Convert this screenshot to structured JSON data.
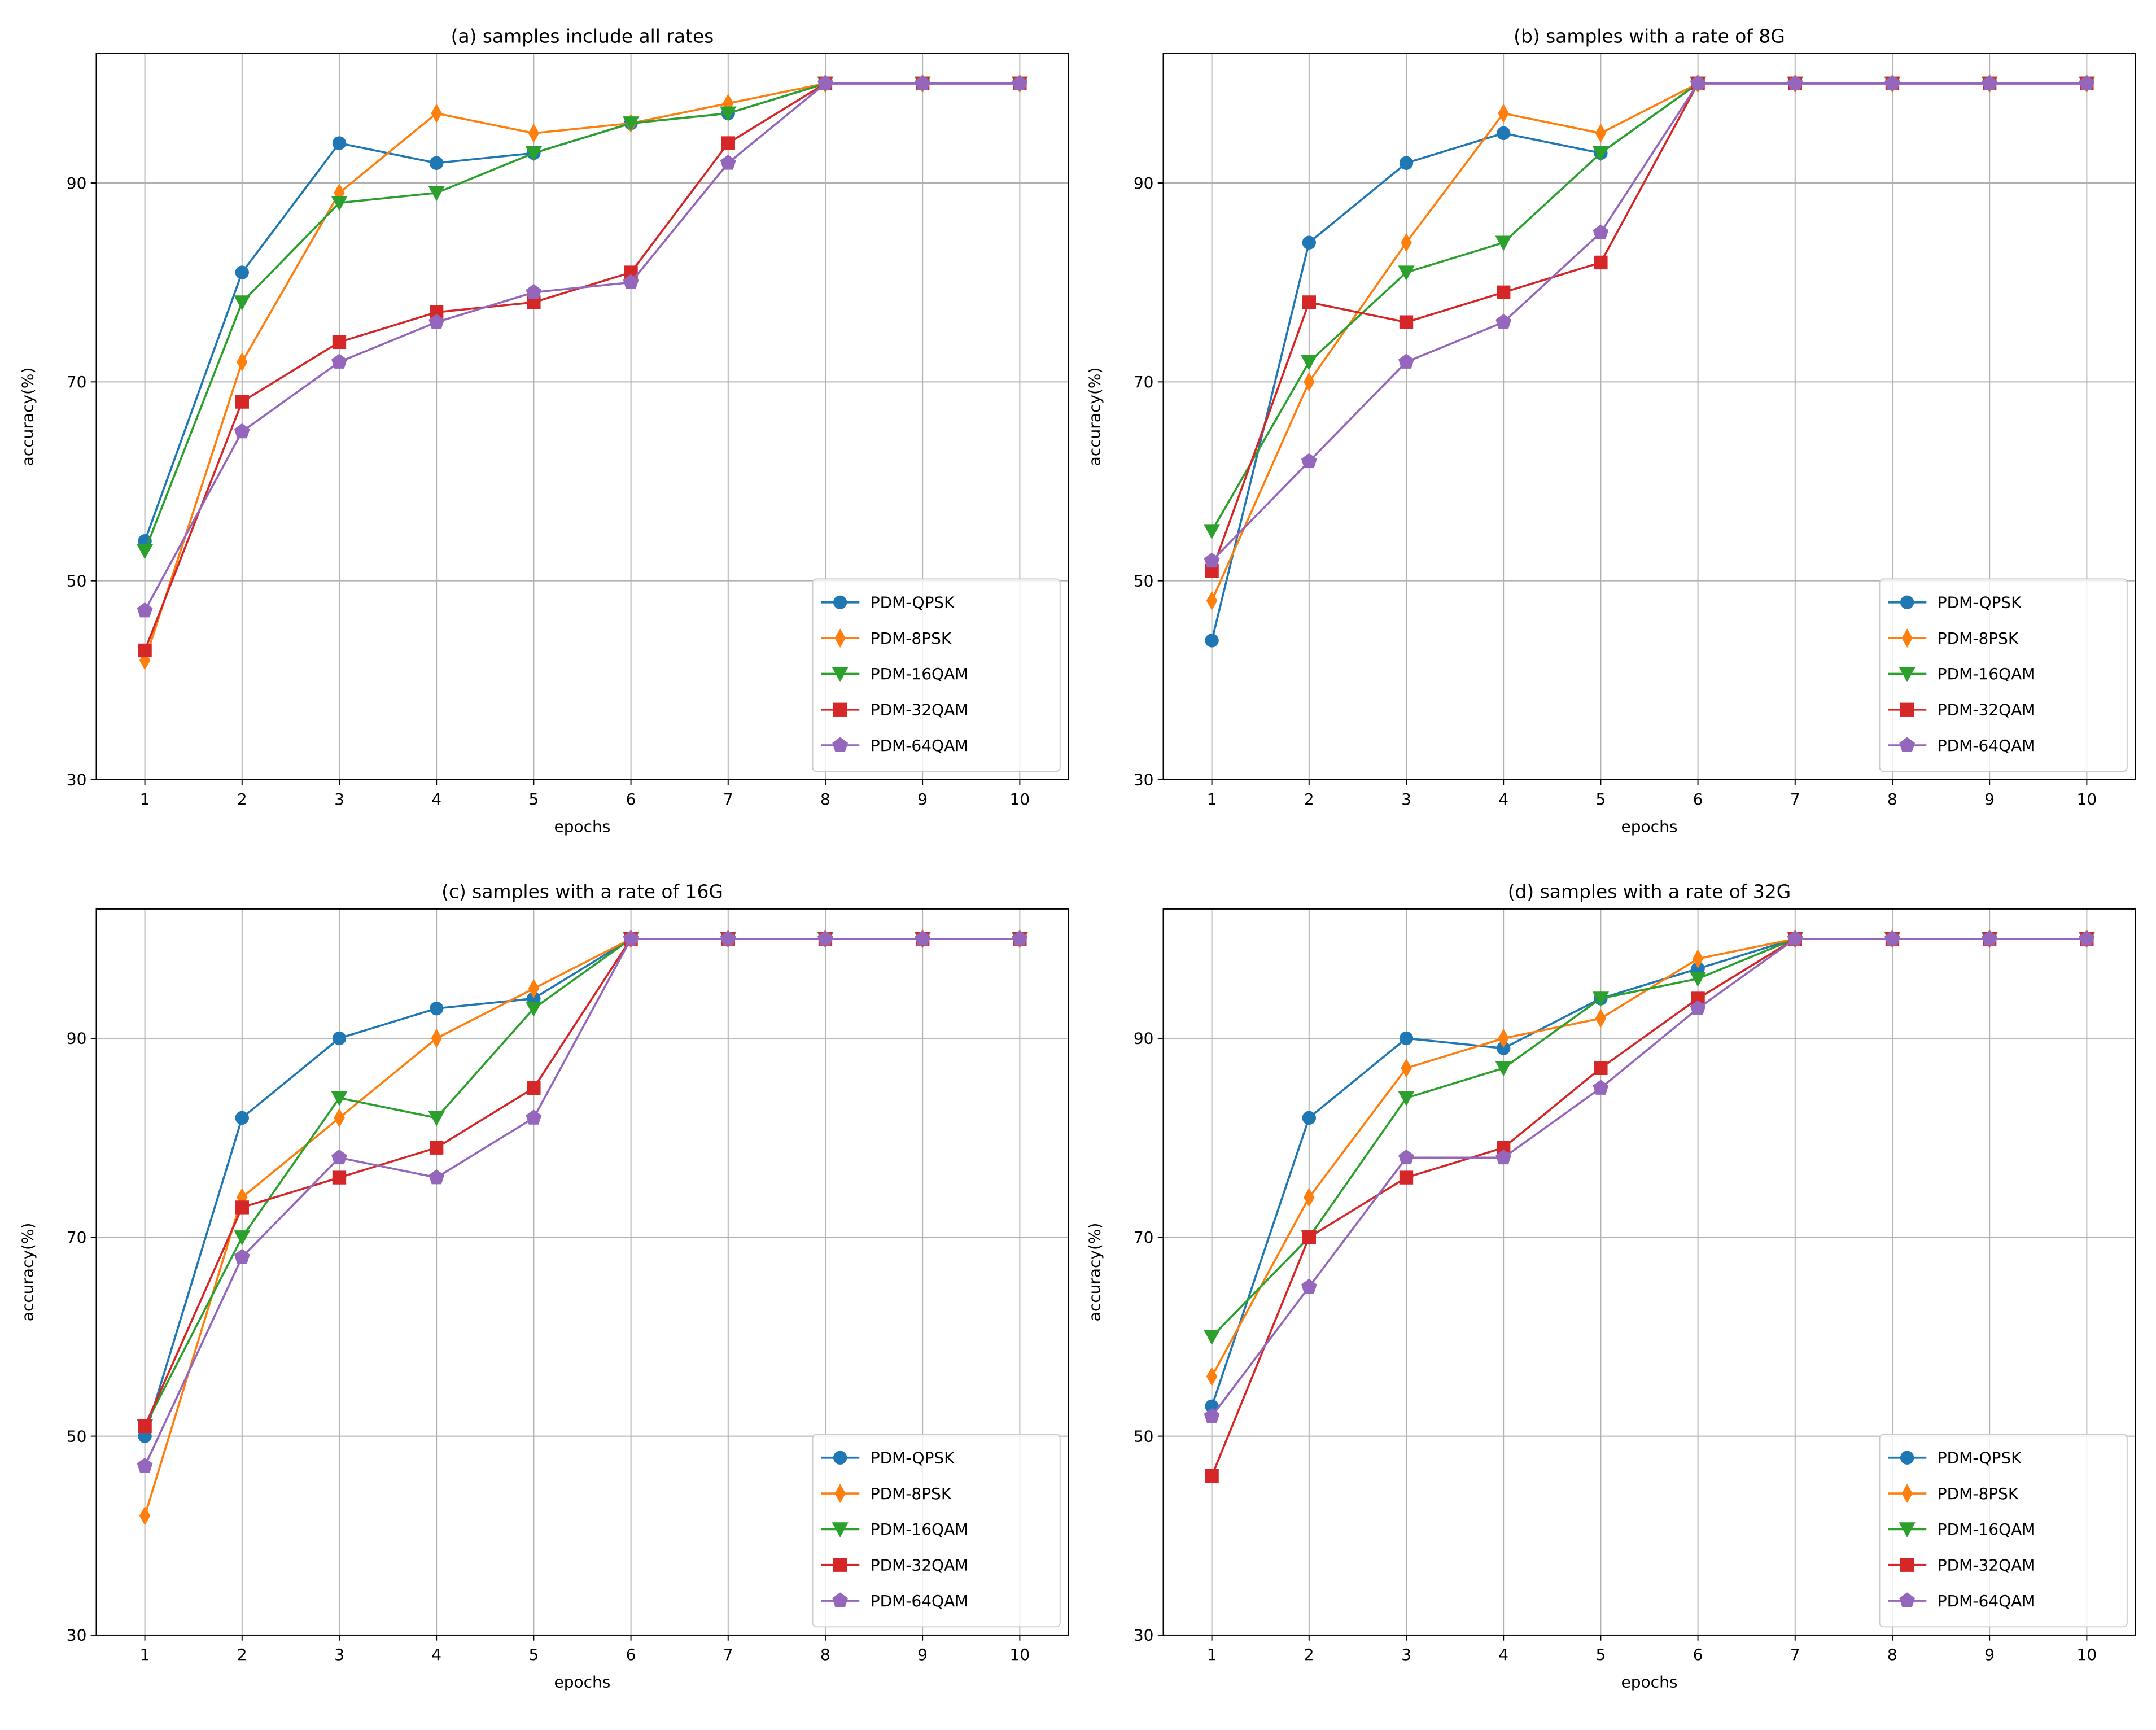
{
  "chart_data": [
    {
      "type": "line",
      "title": "(a) samples include all rates",
      "xlabel": "epochs",
      "ylabel": "accuracy(%)",
      "x": [
        1,
        2,
        3,
        4,
        5,
        6,
        7,
        8,
        9,
        10
      ],
      "xticks": [
        "1",
        "2",
        "3",
        "4",
        "5",
        "6",
        "7",
        "8",
        "9",
        "10"
      ],
      "yticks": [
        "30",
        "50",
        "70",
        "90"
      ],
      "ytick_values": [
        30,
        50,
        70,
        90
      ],
      "xlim": [
        0.5,
        10.5
      ],
      "ylim": [
        30,
        103
      ],
      "grid": true,
      "legend_position": "lower-right",
      "series": [
        {
          "name": "PDM-QPSK",
          "marker": "circle",
          "color": "#1f77b4",
          "values": [
            54,
            81,
            94,
            92,
            93,
            96,
            97,
            100,
            100,
            100
          ]
        },
        {
          "name": "PDM-8PSK",
          "marker": "diamond",
          "color": "#ff7f0e",
          "values": [
            42,
            72,
            89,
            97,
            95,
            96,
            98,
            100,
            100,
            100
          ]
        },
        {
          "name": "PDM-16QAM",
          "marker": "triangle-down",
          "color": "#2ca02c",
          "values": [
            53,
            78,
            88,
            89,
            93,
            96,
            97,
            100,
            100,
            100
          ]
        },
        {
          "name": "PDM-32QAM",
          "marker": "square",
          "color": "#d62728",
          "values": [
            43,
            68,
            74,
            77,
            78,
            81,
            94,
            100,
            100,
            100
          ]
        },
        {
          "name": "PDM-64QAM",
          "marker": "pentagon",
          "color": "#9467bd",
          "values": [
            47,
            65,
            72,
            76,
            79,
            80,
            92,
            100,
            100,
            100
          ]
        }
      ]
    },
    {
      "type": "line",
      "title": "(b) samples with a rate of 8G",
      "xlabel": "epochs",
      "ylabel": "accuracy(%)",
      "x": [
        1,
        2,
        3,
        4,
        5,
        6,
        7,
        8,
        9,
        10
      ],
      "xticks": [
        "1",
        "2",
        "3",
        "4",
        "5",
        "6",
        "7",
        "8",
        "9",
        "10"
      ],
      "yticks": [
        "30",
        "50",
        "70",
        "90"
      ],
      "ytick_values": [
        30,
        50,
        70,
        90
      ],
      "xlim": [
        0.5,
        10.5
      ],
      "ylim": [
        30,
        103
      ],
      "grid": true,
      "legend_position": "lower-right",
      "series": [
        {
          "name": "PDM-QPSK",
          "marker": "circle",
          "color": "#1f77b4",
          "values": [
            44,
            84,
            92,
            95,
            93,
            100,
            100,
            100,
            100,
            100
          ]
        },
        {
          "name": "PDM-8PSK",
          "marker": "diamond",
          "color": "#ff7f0e",
          "values": [
            48,
            70,
            84,
            97,
            95,
            100,
            100,
            100,
            100,
            100
          ]
        },
        {
          "name": "PDM-16QAM",
          "marker": "triangle-down",
          "color": "#2ca02c",
          "values": [
            55,
            72,
            81,
            84,
            93,
            100,
            100,
            100,
            100,
            100
          ]
        },
        {
          "name": "PDM-32QAM",
          "marker": "square",
          "color": "#d62728",
          "values": [
            51,
            78,
            76,
            79,
            82,
            100,
            100,
            100,
            100,
            100
          ]
        },
        {
          "name": "PDM-64QAM",
          "marker": "pentagon",
          "color": "#9467bd",
          "values": [
            52,
            62,
            72,
            76,
            85,
            100,
            100,
            100,
            100,
            100
          ]
        }
      ]
    },
    {
      "type": "line",
      "title": "(c) samples with a rate of 16G",
      "xlabel": "epochs",
      "ylabel": "accuracy(%)",
      "x": [
        1,
        2,
        3,
        4,
        5,
        6,
        7,
        8,
        9,
        10
      ],
      "xticks": [
        "1",
        "2",
        "3",
        "4",
        "5",
        "6",
        "7",
        "8",
        "9",
        "10"
      ],
      "yticks": [
        "30",
        "50",
        "70",
        "90"
      ],
      "ytick_values": [
        30,
        50,
        70,
        90
      ],
      "xlim": [
        0.5,
        10.5
      ],
      "ylim": [
        30,
        103
      ],
      "grid": true,
      "legend_position": "lower-right",
      "series": [
        {
          "name": "PDM-QPSK",
          "marker": "circle",
          "color": "#1f77b4",
          "values": [
            50,
            82,
            90,
            93,
            94,
            100,
            100,
            100,
            100,
            100
          ]
        },
        {
          "name": "PDM-8PSK",
          "marker": "diamond",
          "color": "#ff7f0e",
          "values": [
            42,
            74,
            82,
            90,
            95,
            100,
            100,
            100,
            100,
            100
          ]
        },
        {
          "name": "PDM-16QAM",
          "marker": "triangle-down",
          "color": "#2ca02c",
          "values": [
            51,
            70,
            84,
            82,
            93,
            100,
            100,
            100,
            100,
            100
          ]
        },
        {
          "name": "PDM-32QAM",
          "marker": "square",
          "color": "#d62728",
          "values": [
            51,
            73,
            76,
            79,
            85,
            100,
            100,
            100,
            100,
            100
          ]
        },
        {
          "name": "PDM-64QAM",
          "marker": "pentagon",
          "color": "#9467bd",
          "values": [
            47,
            68,
            78,
            76,
            82,
            100,
            100,
            100,
            100,
            100
          ]
        }
      ]
    },
    {
      "type": "line",
      "title": "(d) samples with a rate of 32G",
      "xlabel": "epochs",
      "ylabel": "accuracy(%)",
      "x": [
        1,
        2,
        3,
        4,
        5,
        6,
        7,
        8,
        9,
        10
      ],
      "xticks": [
        "1",
        "2",
        "3",
        "4",
        "5",
        "6",
        "7",
        "8",
        "9",
        "10"
      ],
      "yticks": [
        "30",
        "50",
        "70",
        "90"
      ],
      "ytick_values": [
        30,
        50,
        70,
        90
      ],
      "xlim": [
        0.5,
        10.5
      ],
      "ylim": [
        30,
        103
      ],
      "grid": true,
      "legend_position": "lower-right",
      "series": [
        {
          "name": "PDM-QPSK",
          "marker": "circle",
          "color": "#1f77b4",
          "values": [
            53,
            82,
            90,
            89,
            94,
            97,
            100,
            100,
            100,
            100
          ]
        },
        {
          "name": "PDM-8PSK",
          "marker": "diamond",
          "color": "#ff7f0e",
          "values": [
            56,
            74,
            87,
            90,
            92,
            98,
            100,
            100,
            100,
            100
          ]
        },
        {
          "name": "PDM-16QAM",
          "marker": "triangle-down",
          "color": "#2ca02c",
          "values": [
            60,
            70,
            84,
            87,
            94,
            96,
            100,
            100,
            100,
            100
          ]
        },
        {
          "name": "PDM-32QAM",
          "marker": "square",
          "color": "#d62728",
          "values": [
            46,
            70,
            76,
            79,
            87,
            94,
            100,
            100,
            100,
            100
          ]
        },
        {
          "name": "PDM-64QAM",
          "marker": "pentagon",
          "color": "#9467bd",
          "values": [
            52,
            65,
            78,
            78,
            85,
            93,
            100,
            100,
            100,
            100
          ]
        }
      ]
    }
  ]
}
